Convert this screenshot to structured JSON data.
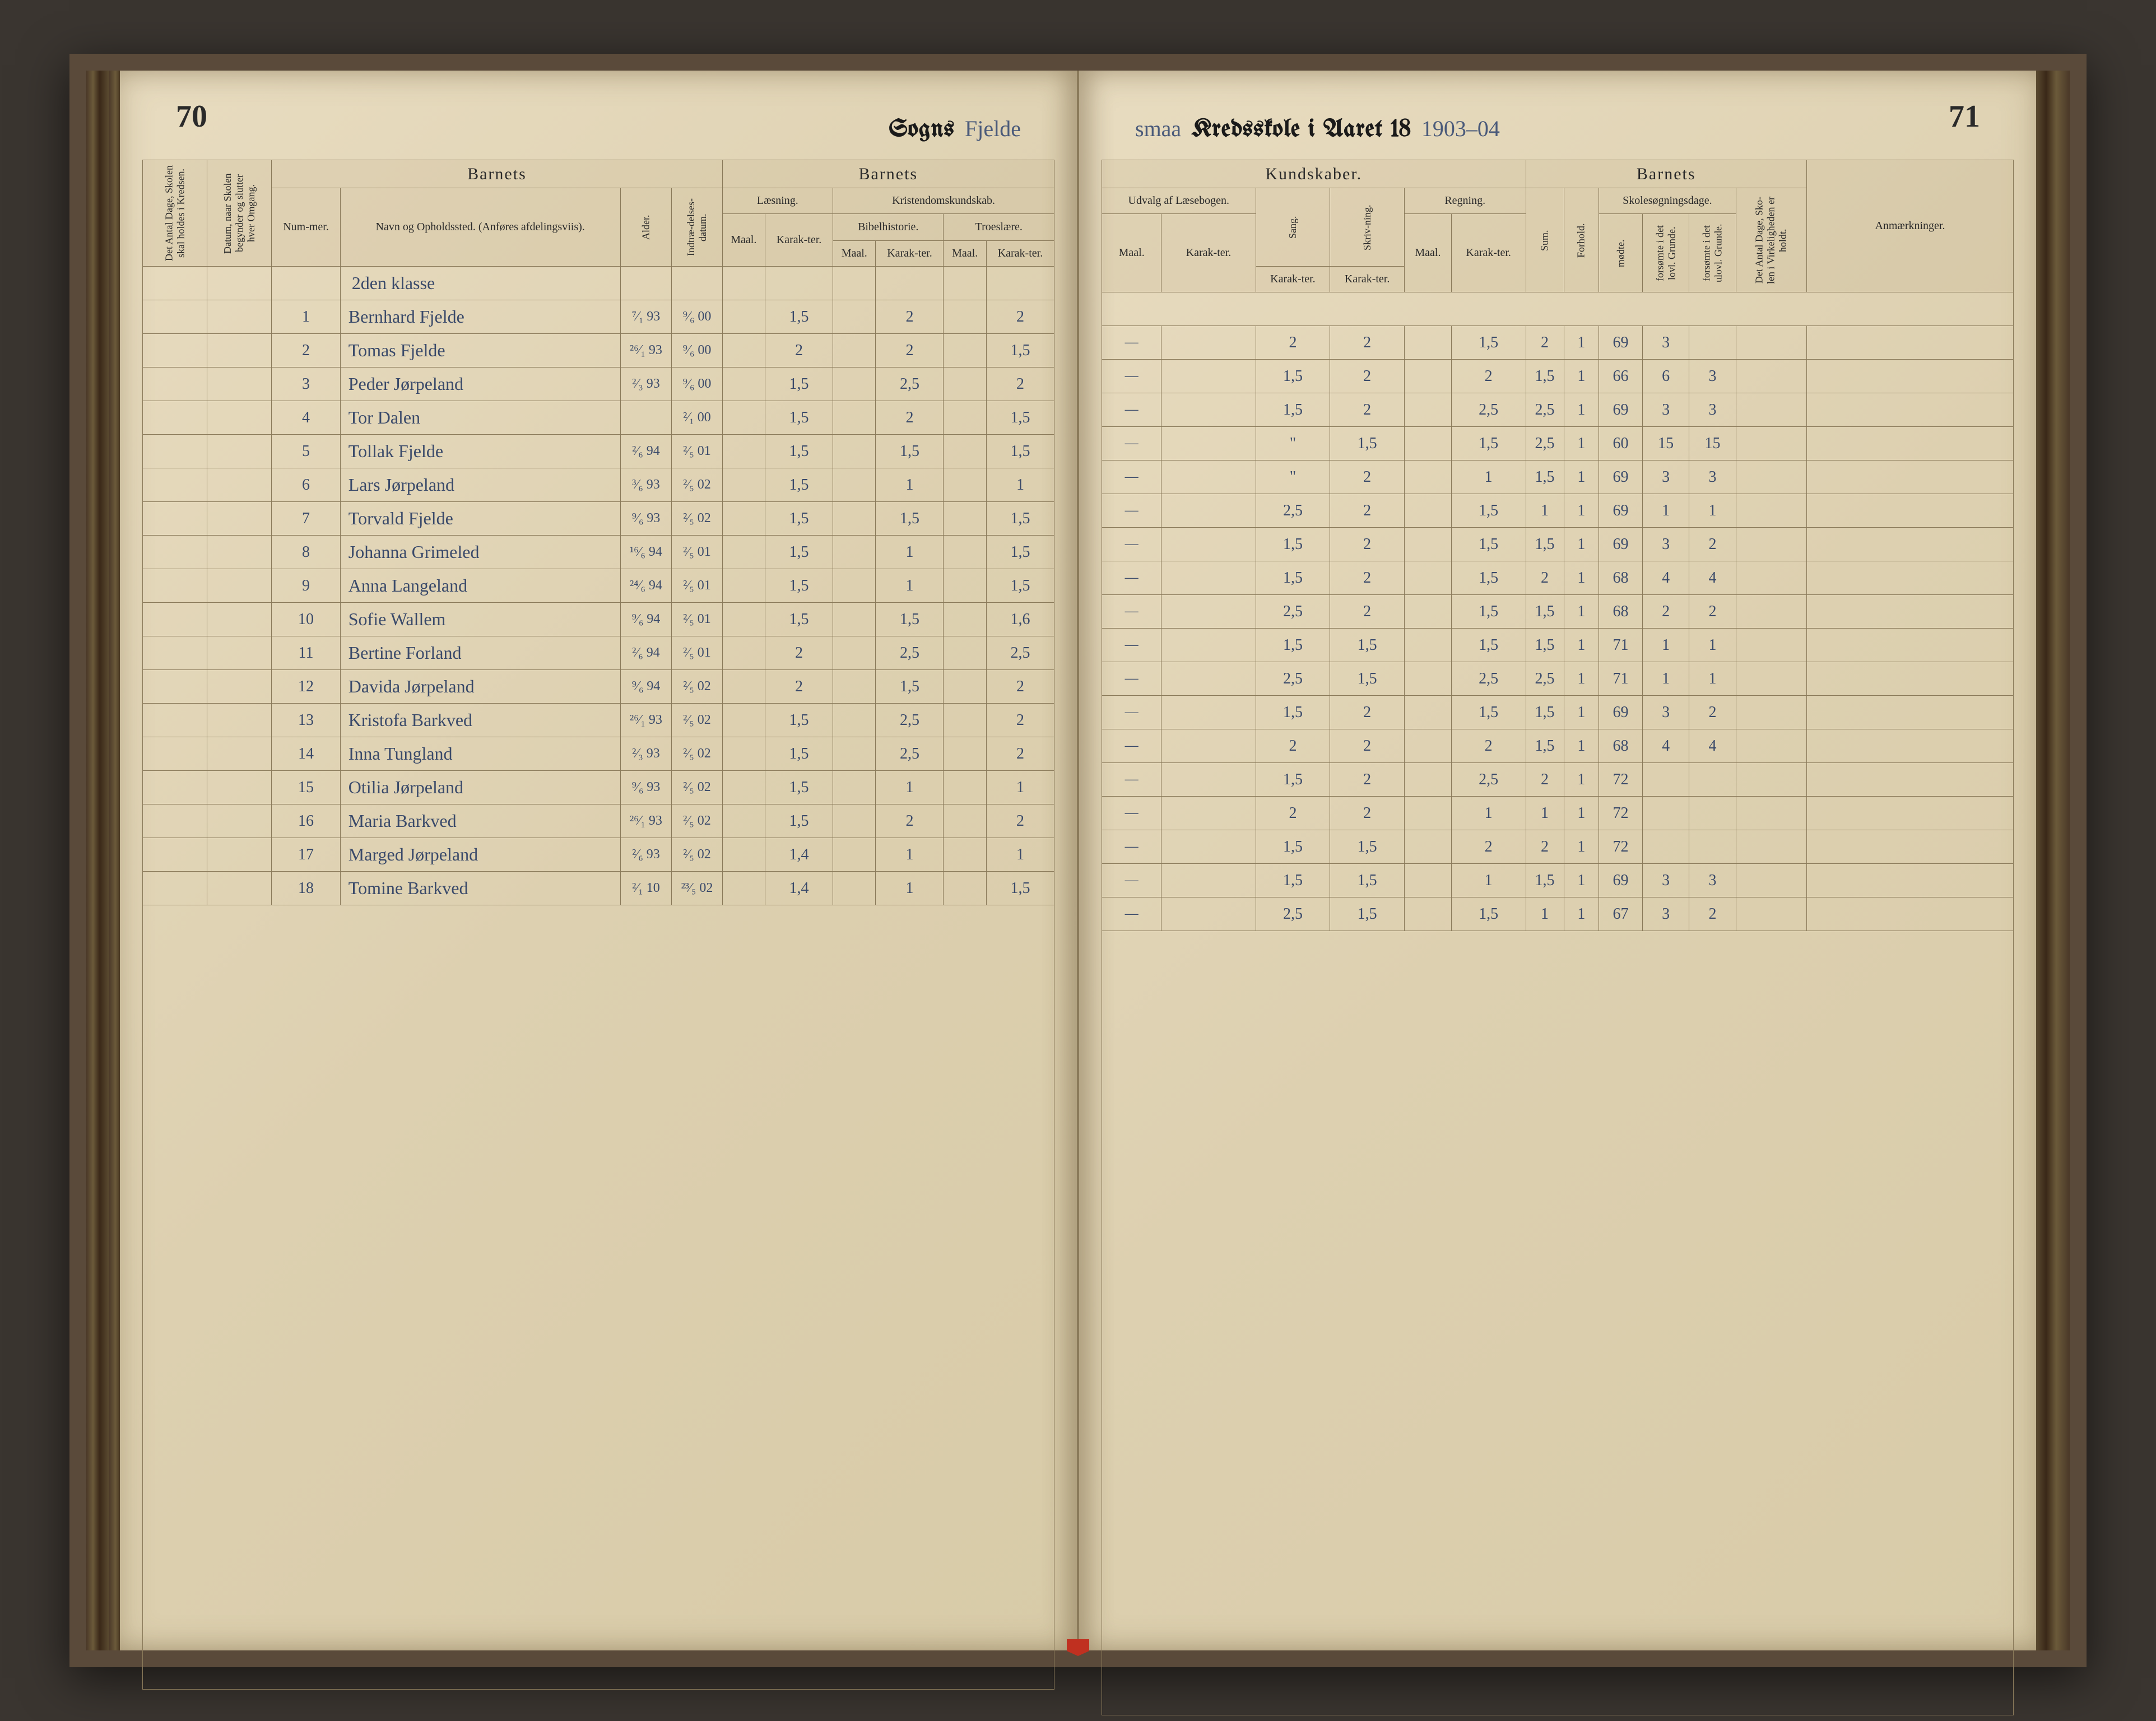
{
  "page_left_number": "70",
  "page_right_number": "71",
  "title": {
    "left_print": "Sogns",
    "left_hand": "Fjelde",
    "right_hand_prefix": "smaa",
    "right_print": "Kredsskole i Aaret 18",
    "right_hand_year": "1903–04"
  },
  "headers": {
    "barnets": "Barnets",
    "laesning": "Læsning.",
    "kristendom": "Kristendomskundskab.",
    "bibelhistorie": "Bibelhistorie.",
    "troeslaere": "Troeslære.",
    "kundskaber": "Kundskaber.",
    "udvalg": "Udvalg af Læsebogen.",
    "sang": "Sang.",
    "skrivning": "Skriv-ning.",
    "regning": "Regning.",
    "skolesog": "Skolesøgningsdage.",
    "anmaerk": "Anmærkninger.",
    "maal": "Maal.",
    "karakter": "Karak-ter.",
    "nummer": "Num-mer.",
    "navn": "Navn og Opholdssted.\n(Anføres afdelingsviis).",
    "alder": "Alder.",
    "indtrad": "Indtræ-delses-datum.",
    "sum": "Sum.",
    "forhold": "Forhold.",
    "modte": "mødte.",
    "forsomte_lov": "forsømte i det lovl. Grunde.",
    "forsomte_ulov": "forsømte i det ulovl. Grunde.",
    "antal_dage": "Det Antal Dage, Sko-len i Virkeligheden er holdt.",
    "antal_dage_left": "Det Antal Dage, Skolen skal holdes i Kredsen.",
    "datum": "Datum, naar Skolen begynder og slutter hver Omgang."
  },
  "class_label": "2den klasse",
  "rows": [
    {
      "n": "1",
      "name": "Bernhard Fjelde",
      "alder": "⁷⁄₁ 93",
      "ind": "⁹⁄₆ 00",
      "l_k": "1,5",
      "b_k": "2",
      "t_k": "2",
      "u_k": "",
      "sa": "2",
      "sk": "2",
      "r_k": "1,5",
      "sum": "2",
      "fh": "1",
      "m": "69",
      "f1": "3",
      "f2": ""
    },
    {
      "n": "2",
      "name": "Tomas Fjelde",
      "alder": "²⁶⁄₁ 93",
      "ind": "⁹⁄₆ 00",
      "l_k": "2",
      "b_k": "2",
      "t_k": "1,5",
      "u_k": "",
      "sa": "1,5",
      "sk": "2",
      "r_k": "2",
      "sum": "1,5",
      "fh": "1",
      "m": "66",
      "f1": "6",
      "f2": "3"
    },
    {
      "n": "3",
      "name": "Peder Jørpeland",
      "alder": "²⁄₃ 93",
      "ind": "⁹⁄₆ 00",
      "l_k": "1,5",
      "b_k": "2,5",
      "t_k": "2",
      "u_k": "",
      "sa": "1,5",
      "sk": "2",
      "r_k": "2,5",
      "sum": "2,5",
      "fh": "1",
      "m": "69",
      "f1": "3",
      "f2": "3"
    },
    {
      "n": "4",
      "name": "Tor Dalen",
      "alder": "",
      "ind": "²⁄₁ 00",
      "l_k": "1,5",
      "b_k": "2",
      "t_k": "1,5",
      "u_k": "",
      "sa": "\"",
      "sk": "1,5",
      "r_k": "1,5",
      "sum": "2,5",
      "fh": "1",
      "m": "60",
      "f1": "15",
      "f2": "15"
    },
    {
      "n": "5",
      "name": "Tollak Fjelde",
      "alder": "²⁄₆ 94",
      "ind": "²⁄₅ 01",
      "l_k": "1,5",
      "b_k": "1,5",
      "t_k": "1,5",
      "u_k": "",
      "sa": "\"",
      "sk": "2",
      "r_k": "1",
      "sum": "1,5",
      "fh": "1",
      "m": "69",
      "f1": "3",
      "f2": "3"
    },
    {
      "n": "6",
      "name": "Lars Jørpeland",
      "alder": "³⁄₆ 93",
      "ind": "²⁄₅ 02",
      "l_k": "1,5",
      "b_k": "1",
      "t_k": "1",
      "u_k": "",
      "sa": "2,5",
      "sk": "2",
      "r_k": "1,5",
      "sum": "1",
      "fh": "1",
      "m": "69",
      "f1": "1",
      "f2": "1"
    },
    {
      "n": "7",
      "name": "Torvald Fjelde",
      "alder": "⁹⁄₆ 93",
      "ind": "²⁄₅ 02",
      "l_k": "1,5",
      "b_k": "1,5",
      "t_k": "1,5",
      "u_k": "",
      "sa": "1,5",
      "sk": "2",
      "r_k": "1,5",
      "sum": "1,5",
      "fh": "1",
      "m": "69",
      "f1": "3",
      "f2": "2"
    },
    {
      "n": "8",
      "name": "Johanna Grimeled",
      "alder": "¹⁶⁄₆ 94",
      "ind": "²⁄₅ 01",
      "l_k": "1,5",
      "b_k": "1",
      "t_k": "1,5",
      "u_k": "",
      "sa": "1,5",
      "sk": "2",
      "r_k": "1,5",
      "sum": "2",
      "fh": "1",
      "m": "68",
      "f1": "4",
      "f2": "4"
    },
    {
      "n": "9",
      "name": "Anna Langeland",
      "alder": "²⁴⁄₆ 94",
      "ind": "²⁄₅ 01",
      "l_k": "1,5",
      "b_k": "1",
      "t_k": "1,5",
      "u_k": "",
      "sa": "2,5",
      "sk": "2",
      "r_k": "1,5",
      "sum": "1,5",
      "fh": "1",
      "m": "68",
      "f1": "2",
      "f2": "2"
    },
    {
      "n": "10",
      "name": "Sofie Wallem",
      "alder": "⁹⁄₆ 94",
      "ind": "²⁄₅ 01",
      "l_k": "1,5",
      "b_k": "1,5",
      "t_k": "1,6",
      "u_k": "",
      "sa": "1,5",
      "sk": "1,5",
      "r_k": "1,5",
      "sum": "1,5",
      "fh": "1",
      "m": "71",
      "f1": "1",
      "f2": "1"
    },
    {
      "n": "11",
      "name": "Bertine Forland",
      "alder": "²⁄₆ 94",
      "ind": "²⁄₅ 01",
      "l_k": "2",
      "b_k": "2,5",
      "t_k": "2,5",
      "u_k": "",
      "sa": "2,5",
      "sk": "1,5",
      "r_k": "2,5",
      "sum": "2,5",
      "fh": "1",
      "m": "71",
      "f1": "1",
      "f2": "1"
    },
    {
      "n": "12",
      "name": "Davida Jørpeland",
      "alder": "⁹⁄₆ 94",
      "ind": "²⁄₅ 02",
      "l_k": "2",
      "b_k": "1,5",
      "t_k": "2",
      "u_k": "",
      "sa": "1,5",
      "sk": "2",
      "r_k": "1,5",
      "sum": "1,5",
      "fh": "1",
      "m": "69",
      "f1": "3",
      "f2": "2"
    },
    {
      "n": "13",
      "name": "Kristofa Barkved",
      "alder": "²⁶⁄₁ 93",
      "ind": "²⁄₅ 02",
      "l_k": "1,5",
      "b_k": "2,5",
      "t_k": "2",
      "u_k": "",
      "sa": "2",
      "sk": "2",
      "r_k": "2",
      "sum": "1,5",
      "fh": "1",
      "m": "68",
      "f1": "4",
      "f2": "4"
    },
    {
      "n": "14",
      "name": "Inna Tungland",
      "alder": "²⁄₃ 93",
      "ind": "²⁄₅ 02",
      "l_k": "1,5",
      "b_k": "2,5",
      "t_k": "2",
      "u_k": "",
      "sa": "1,5",
      "sk": "2",
      "r_k": "2,5",
      "sum": "2",
      "fh": "1",
      "m": "72",
      "f1": "",
      "f2": ""
    },
    {
      "n": "15",
      "name": "Otilia Jørpeland",
      "alder": "⁹⁄₆ 93",
      "ind": "²⁄₅ 02",
      "l_k": "1,5",
      "b_k": "1",
      "t_k": "1",
      "u_k": "",
      "sa": "2",
      "sk": "2",
      "r_k": "1",
      "sum": "1",
      "fh": "1",
      "m": "72",
      "f1": "",
      "f2": ""
    },
    {
      "n": "16",
      "name": "Maria Barkved",
      "alder": "²⁶⁄₁ 93",
      "ind": "²⁄₅ 02",
      "l_k": "1,5",
      "b_k": "2",
      "t_k": "2",
      "u_k": "",
      "sa": "1,5",
      "sk": "1,5",
      "r_k": "2",
      "sum": "2",
      "fh": "1",
      "m": "72",
      "f1": "",
      "f2": ""
    },
    {
      "n": "17",
      "name": "Marged Jørpeland",
      "alder": "²⁄₆ 93",
      "ind": "²⁄₅ 02",
      "l_k": "1,4",
      "b_k": "1",
      "t_k": "1",
      "u_k": "",
      "sa": "1,5",
      "sk": "1,5",
      "r_k": "1",
      "sum": "1,5",
      "fh": "1",
      "m": "69",
      "f1": "3",
      "f2": "3"
    },
    {
      "n": "18",
      "name": "Tomine Barkved",
      "alder": "²⁄₁ 10",
      "ind": "²³⁄₅ 02",
      "l_k": "1,4",
      "b_k": "1",
      "t_k": "1,5",
      "u_k": "",
      "sa": "2,5",
      "sk": "1,5",
      "r_k": "1,5",
      "sum": "1",
      "fh": "1",
      "m": "67",
      "f1": "3",
      "f2": "2"
    }
  ],
  "colors": {
    "paper": "#e8dcc0",
    "ink": "#2a2a2a",
    "pen": "#3a4a6a",
    "rule": "#8a7a5a",
    "background": "#3a3530",
    "ribbon": "#c03020"
  }
}
